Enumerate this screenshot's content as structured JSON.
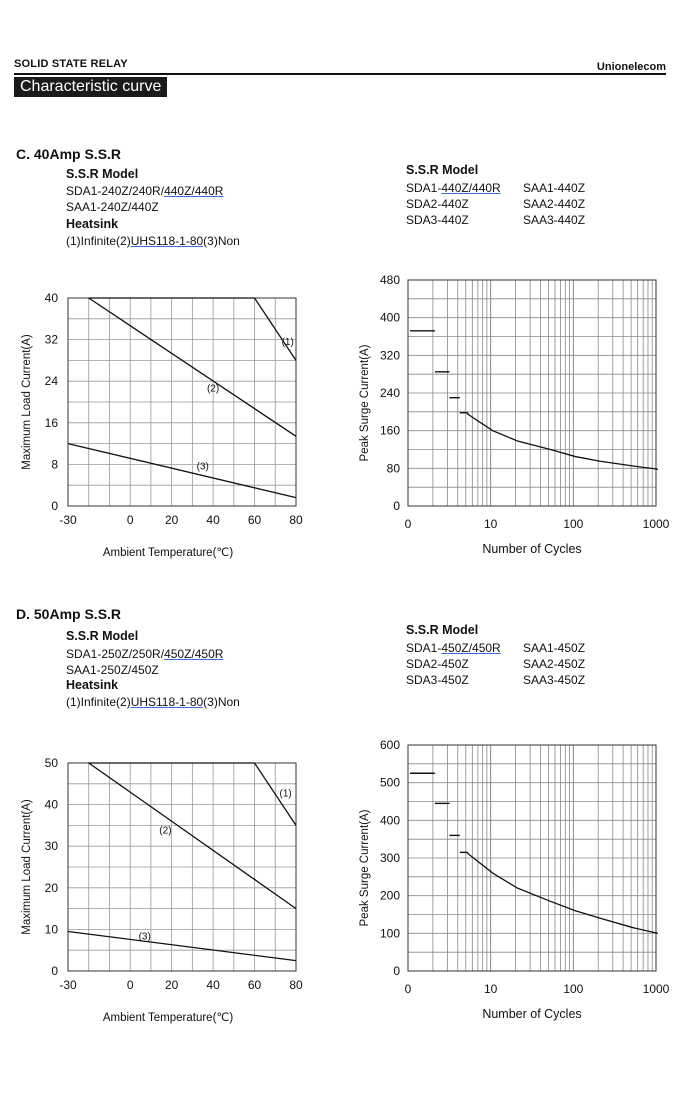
{
  "header": {
    "left": "SOLID STATE RELAY",
    "right": "Unionelecom",
    "title": "Characteristic curve"
  },
  "sections": [
    {
      "title": "C. 40Amp S.S.R",
      "model_label": "S.S.R Model",
      "model_lines": [
        {
          "plain": "SDA1-240Z/240R/",
          "underlined": "440Z/440R",
          "tail": ""
        },
        {
          "plain": "SAA1-240Z/440Z",
          "underlined": "",
          "tail": ""
        }
      ],
      "heatsink_label": "Heatsink",
      "heatsink_line": {
        "plain": "(1)Infinite(2)",
        "underlined": "UHS118-1-80",
        "tail": "(3)Non"
      },
      "right_model_label": "S.S.R Model",
      "right_models_col1": [
        {
          "plain": "SDA1-",
          "underlined": "440Z/440R"
        },
        {
          "plain": "SDA2-440Z",
          "underlined": ""
        },
        {
          "plain": "SDA3-440Z",
          "underlined": ""
        }
      ],
      "right_models_col2": [
        "SAA1-440Z",
        "SAA2-440Z",
        "SAA3-440Z"
      ]
    },
    {
      "title": "D. 50Amp S.S.R",
      "model_label": "S.S.R Model",
      "model_lines": [
        {
          "plain": "SDA1-250Z/250R/",
          "underlined": "450Z/450R",
          "tail": ""
        },
        {
          "plain": "SAA1-250Z/450Z",
          "underlined": "",
          "tail": ""
        }
      ],
      "heatsink_label": "Heatsink",
      "heatsink_line": {
        "plain": "(1)Infinite(2)",
        "underlined": "UHS118-1-80",
        "tail": "(3)Non"
      },
      "right_model_label": "S.S.R Model",
      "right_models_col1": [
        {
          "plain": "SDA1-",
          "underlined": "450Z/450R"
        },
        {
          "plain": "SDA2-450Z",
          "underlined": ""
        },
        {
          "plain": "SDA3-450Z",
          "underlined": ""
        }
      ],
      "right_models_col2": [
        "SAA1-450Z",
        "SAA2-450Z",
        "SAA3-450Z"
      ]
    }
  ],
  "chart_data": [
    {
      "type": "line",
      "title": "",
      "xlabel": "Ambient Temperature(℃)",
      "ylabel": "Maximum Load Current(A)",
      "xlim": [
        -30,
        80
      ],
      "ylim": [
        0,
        40
      ],
      "xticks": [
        -30,
        0,
        20,
        40,
        60,
        80
      ],
      "yticks": [
        0,
        8,
        16,
        24,
        32,
        40
      ],
      "grid": true,
      "series": [
        {
          "name": "(1)",
          "x": [
            -20,
            60,
            80
          ],
          "y": [
            40,
            40,
            28
          ]
        },
        {
          "name": "(2)",
          "x": [
            -20,
            80
          ],
          "y": [
            40,
            13.4
          ]
        },
        {
          "name": "(3)",
          "x": [
            -30,
            80
          ],
          "y": [
            12,
            1.6
          ]
        }
      ]
    },
    {
      "type": "line",
      "title": "",
      "xlabel": "Number of Cycles",
      "ylabel": "Peak Surge Current(A)",
      "xscale": "log",
      "xlim": [
        1,
        1000
      ],
      "ylim": [
        0,
        480
      ],
      "xticks": [
        1,
        10,
        100,
        1000
      ],
      "xticklabels": [
        "0",
        "10",
        "100",
        "1000"
      ],
      "yticks": [
        0,
        80,
        160,
        240,
        320,
        400,
        480
      ],
      "grid": true,
      "series": [
        {
          "name": "",
          "x": [
            1,
            2,
            2,
            3,
            3,
            4,
            4,
            5,
            5,
            10,
            20,
            50,
            100,
            200,
            500,
            1000
          ],
          "y": [
            372,
            372,
            285,
            285,
            230,
            230,
            198,
            198,
            195,
            160,
            138,
            120,
            105,
            95,
            85,
            78
          ]
        }
      ]
    },
    {
      "type": "line",
      "title": "",
      "xlabel": "Ambient Temperature(℃)",
      "ylabel": "Maximum Load Current(A)",
      "xlim": [
        -30,
        80
      ],
      "ylim": [
        0,
        50
      ],
      "xticks": [
        -30,
        0,
        20,
        40,
        60,
        80
      ],
      "yticks": [
        0,
        10,
        20,
        30,
        40,
        50
      ],
      "grid": true,
      "series": [
        {
          "name": "(1)",
          "x": [
            -20,
            60,
            80
          ],
          "y": [
            50,
            50,
            35
          ]
        },
        {
          "name": "(2)",
          "x": [
            -20,
            80
          ],
          "y": [
            50,
            15
          ]
        },
        {
          "name": "(3)",
          "x": [
            -30,
            80
          ],
          "y": [
            9.5,
            2.5
          ]
        }
      ]
    },
    {
      "type": "line",
      "title": "",
      "xlabel": "Number of Cycles",
      "ylabel": "Peak Surge Current(A)",
      "xscale": "log",
      "xlim": [
        1,
        1000
      ],
      "ylim": [
        0,
        600
      ],
      "xticks": [
        1,
        10,
        100,
        1000
      ],
      "xticklabels": [
        "0",
        "10",
        "100",
        "1000"
      ],
      "yticks": [
        0,
        100,
        200,
        300,
        400,
        500,
        600
      ],
      "grid": true,
      "series": [
        {
          "name": "",
          "x": [
            1,
            2,
            2,
            3,
            3,
            4,
            4,
            5,
            5,
            10,
            20,
            50,
            100,
            200,
            500,
            1000
          ],
          "y": [
            525,
            525,
            445,
            445,
            360,
            360,
            315,
            315,
            312,
            260,
            220,
            185,
            160,
            140,
            115,
            100
          ]
        }
      ]
    }
  ]
}
